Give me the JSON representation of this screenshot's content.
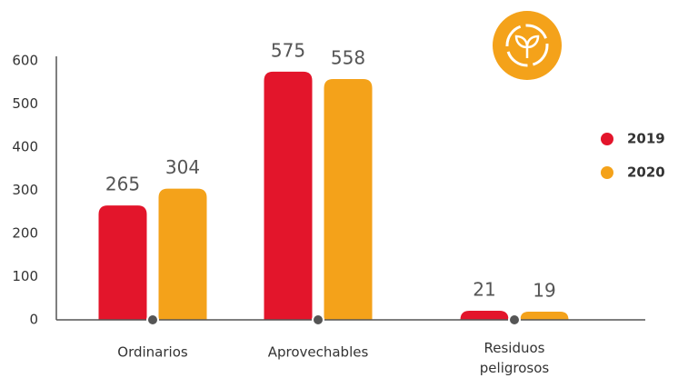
{
  "chart_data": {
    "type": "bar",
    "categories": [
      "Ordinarios",
      "Aprovechables",
      "Residuos peligrosos"
    ],
    "series": [
      {
        "name": "2019",
        "color": "#e3152b",
        "values": [
          265,
          575,
          21
        ]
      },
      {
        "name": "2020",
        "color": "#f4a21a",
        "values": [
          304,
          558,
          19
        ]
      }
    ],
    "ylim": [
      0,
      600
    ],
    "yticks": [
      0,
      100,
      200,
      300,
      400,
      500,
      600
    ],
    "grid": false,
    "legend": "right"
  }
}
